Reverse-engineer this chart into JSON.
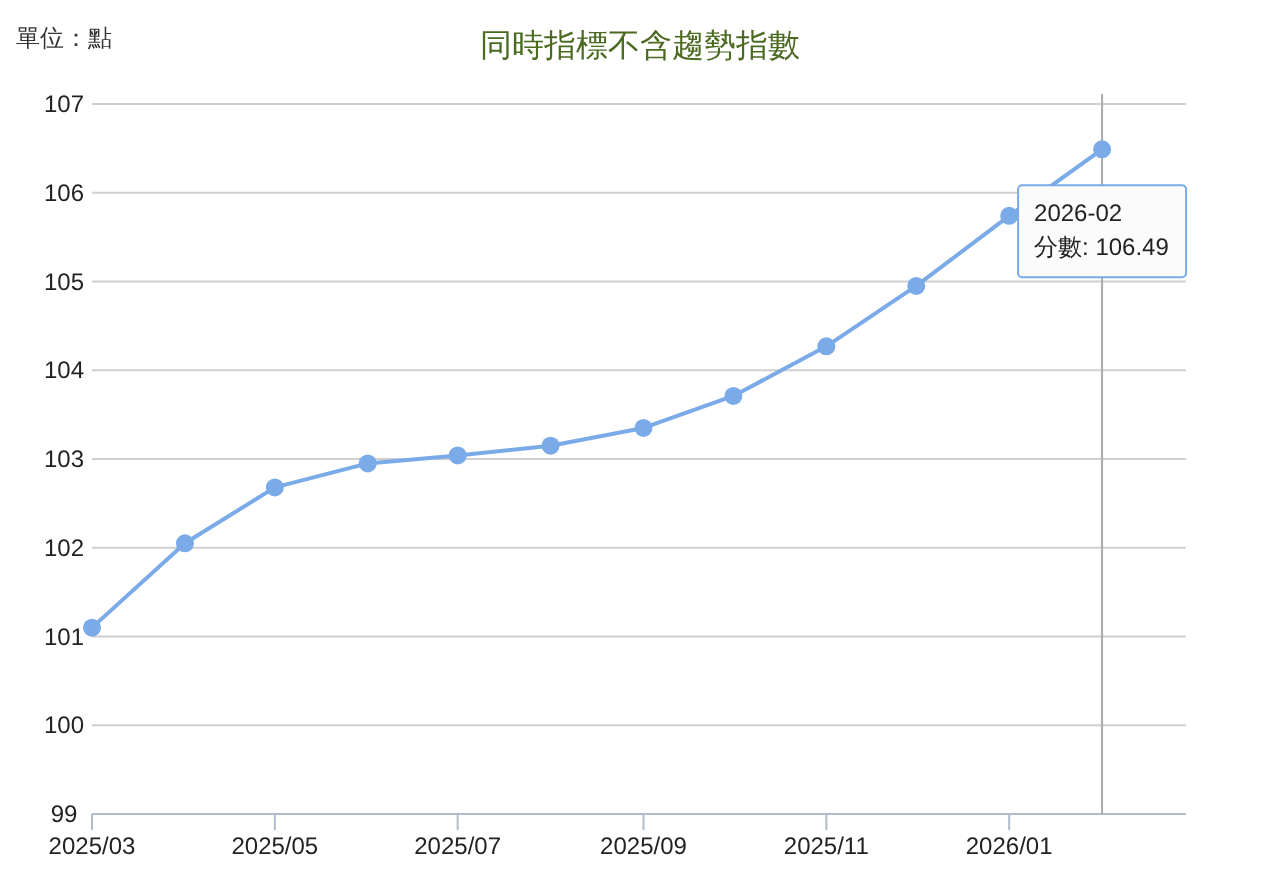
{
  "chart_data": {
    "type": "line",
    "title": "同時指標不含趨勢指數",
    "ylabel": "單位：點",
    "x": [
      "2025-03",
      "2025-04",
      "2025-05",
      "2025-06",
      "2025-07",
      "2025-08",
      "2025-09",
      "2025-10",
      "2025-11",
      "2025-12",
      "2026-01",
      "2026-02"
    ],
    "series": [
      {
        "color": "#7aaae8",
        "values": [
          101.1,
          102.05,
          102.68,
          102.95,
          103.04,
          103.15,
          103.35,
          103.71,
          104.27,
          104.95,
          105.74,
          106.49
        ]
      }
    ],
    "xlim": [
      "2025-03",
      "2026-03"
    ],
    "xticks": [
      {
        "value": "2025-03",
        "label": "2025/03"
      },
      {
        "value": "2025-05",
        "label": "2025/05"
      },
      {
        "value": "2025-07",
        "label": "2025/07"
      },
      {
        "value": "2025-09",
        "label": "2025/09"
      },
      {
        "value": "2025-11",
        "label": "2025/11"
      },
      {
        "value": "2026-01",
        "label": "2026/01"
      }
    ],
    "ylim": [
      99,
      107
    ],
    "yticks": [
      99,
      100,
      101,
      102,
      103,
      104,
      105,
      106,
      107
    ],
    "grid": "y",
    "marker": "circle",
    "line_style": "solid",
    "ref_lines": [
      {
        "axis": "x",
        "value": "2026-02",
        "color": "#aaaaaa"
      }
    ],
    "annotations": [
      {
        "text": "2026-02\n分數: 106.49",
        "x": "2026-02",
        "y": 106.49
      }
    ]
  }
}
